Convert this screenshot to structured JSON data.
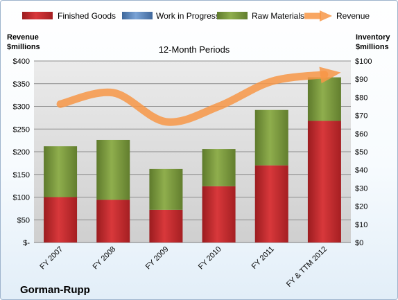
{
  "chart_data": {
    "type": "bar",
    "subtitle": "12-Month Periods",
    "company": "Gorman-Rupp",
    "categories": [
      "FY 2007",
      "FY 2008",
      "FY 2009",
      "FY 2010",
      "FY 2011",
      "FY & TTM 2012"
    ],
    "left_axis": {
      "title_line1": "Revenue",
      "title_line2": "$millions",
      "ylim": [
        0,
        400
      ],
      "tick_labels": [
        "$-",
        "$50",
        "$100",
        "$150",
        "$200",
        "$250",
        "$300",
        "$350",
        "$400"
      ]
    },
    "right_axis": {
      "title_line1": "Inventory",
      "title_line2": "$millions",
      "ylim": [
        0,
        100
      ],
      "tick_labels": [
        "$0",
        "$10",
        "$20",
        "$30",
        "$40",
        "$50",
        "$60",
        "$70",
        "$80",
        "$90",
        "$100"
      ]
    },
    "series": [
      {
        "name": "Finished Goods",
        "type": "stacked-bar",
        "axis": "right",
        "color": "#c0282b",
        "values": [
          25,
          23.5,
          18,
          31,
          42.5,
          67
        ]
      },
      {
        "name": "Work in Progress",
        "type": "stacked-bar",
        "axis": "right",
        "color": "#4f81bd",
        "values": [
          0,
          0,
          0,
          0,
          0,
          0
        ]
      },
      {
        "name": "Raw Materials",
        "type": "stacked-bar",
        "axis": "right",
        "color": "#77933c",
        "values": [
          28,
          33,
          22.5,
          20.5,
          30.5,
          24
        ]
      },
      {
        "name": "Revenue",
        "type": "line",
        "axis": "left",
        "color": "#f79646",
        "values": [
          305,
          330,
          266,
          300,
          355,
          370
        ]
      }
    ],
    "legend_position": "top",
    "grid": true
  }
}
